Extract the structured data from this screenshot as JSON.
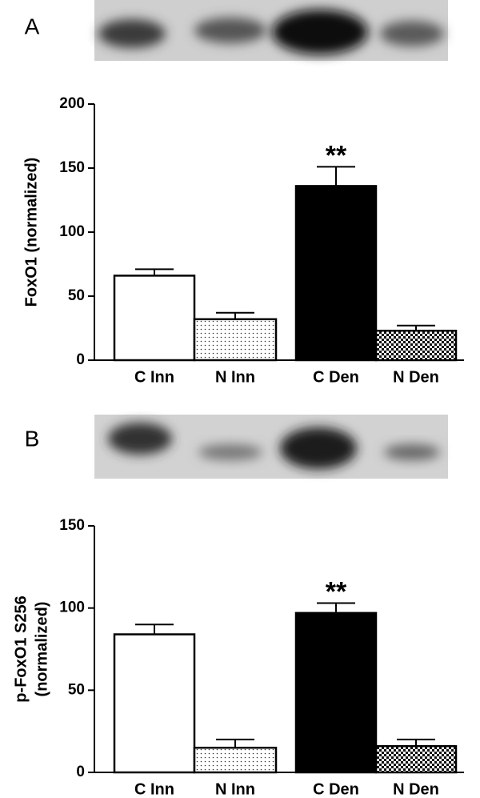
{
  "chart_data": [
    {
      "type": "bar",
      "panel": "A",
      "ylabel": [
        "FoxO1 (normalized)"
      ],
      "categories": [
        "C Inn",
        "N Inn",
        "C Den",
        "N Den"
      ],
      "values": [
        66,
        32,
        136,
        23
      ],
      "errors": [
        5,
        5,
        15,
        4
      ],
      "fills": [
        "white",
        "dots",
        "black",
        "checker"
      ],
      "annotations": [
        null,
        null,
        "**",
        null
      ],
      "ylim": [
        0,
        200
      ],
      "yticks": [
        0,
        50,
        100,
        150,
        200
      ]
    },
    {
      "type": "bar",
      "panel": "B",
      "ylabel": [
        "p-FoxO1 S256",
        "(normalized)"
      ],
      "categories": [
        "C Inn",
        "N Inn",
        "C Den",
        "N Den"
      ],
      "values": [
        84,
        15,
        97,
        16
      ],
      "errors": [
        6,
        5,
        6,
        4
      ],
      "fills": [
        "white",
        "dots",
        "black",
        "checker"
      ],
      "annotations": [
        null,
        null,
        "**",
        null
      ],
      "ylim": [
        0,
        150
      ],
      "yticks": [
        0,
        50,
        100,
        150
      ]
    }
  ]
}
